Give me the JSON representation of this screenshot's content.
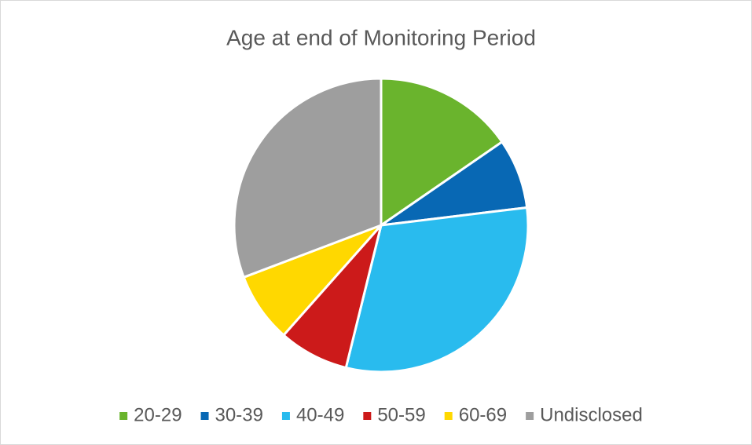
{
  "chart_data": {
    "type": "pie",
    "title": "Age at end of Monitoring Period",
    "categories": [
      "20-29",
      "30-39",
      "40-49",
      "50-59",
      "60-69",
      "Undisclosed"
    ],
    "values": [
      15.4,
      7.7,
      30.8,
      7.7,
      7.7,
      30.8
    ],
    "colors": [
      "#6ab42d",
      "#0868b4",
      "#29bbee",
      "#cc1a1a",
      "#ffd800",
      "#9e9e9e"
    ],
    "legend": "bottom"
  }
}
